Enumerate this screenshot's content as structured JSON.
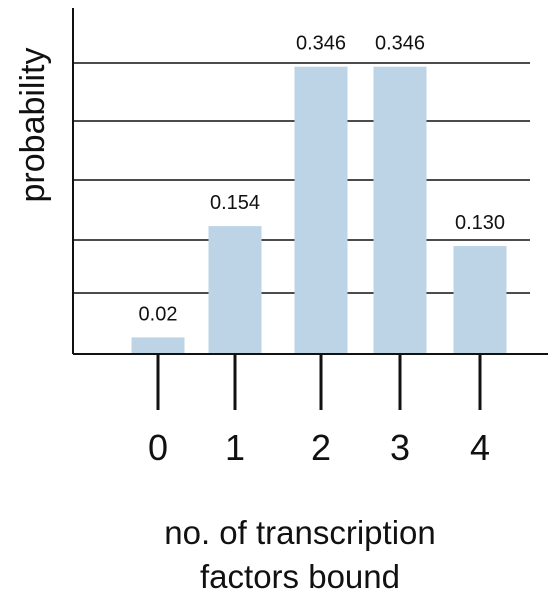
{
  "chart_data": {
    "type": "bar",
    "categories": [
      "0",
      "1",
      "2",
      "3",
      "4"
    ],
    "values": [
      0.02,
      0.154,
      0.346,
      0.346,
      0.13
    ],
    "data_labels": [
      "0.02",
      "0.154",
      "0.346",
      "0.346",
      "0.130"
    ],
    "ylabel": "probability",
    "xlabel": [
      "no. of transcription",
      "factors bound"
    ],
    "ylim": [
      0,
      0.5
    ],
    "grid": true,
    "bar_color": "#bcd4e6"
  }
}
